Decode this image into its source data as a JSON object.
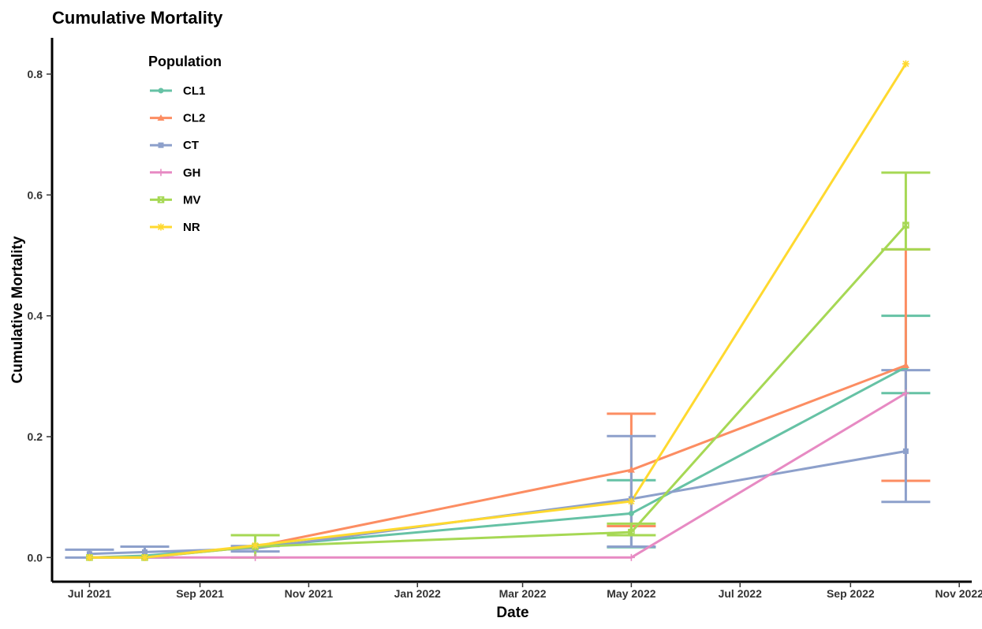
{
  "chart_data": {
    "type": "line",
    "title": "Cumulative Mortality",
    "xlabel": "Date",
    "ylabel": "Cumulative Mortality",
    "xlim": [
      "2021-06-10",
      "2022-11-08"
    ],
    "ylim": [
      -0.04,
      0.86
    ],
    "x_ticks": [
      {
        "date": "2021-07-01",
        "label": "Jul 2021"
      },
      {
        "date": "2021-09-01",
        "label": "Sep 2021"
      },
      {
        "date": "2021-11-01",
        "label": "Nov 2021"
      },
      {
        "date": "2022-01-01",
        "label": "Jan 2022"
      },
      {
        "date": "2022-03-01",
        "label": "Mar 2022"
      },
      {
        "date": "2022-05-01",
        "label": "May 2022"
      },
      {
        "date": "2022-07-01",
        "label": "Jul 2022"
      },
      {
        "date": "2022-09-01",
        "label": "Sep 2022"
      },
      {
        "date": "2022-11-01",
        "label": "Nov 2022"
      }
    ],
    "y_ticks": [
      0.0,
      0.2,
      0.4,
      0.6,
      0.8
    ],
    "y_tick_labels": [
      "0.0",
      "0.2",
      "0.4",
      "0.6",
      "0.8"
    ],
    "grid": false,
    "legend": {
      "title": "Population",
      "position": "top-left"
    },
    "series": [
      {
        "name": "CL1",
        "color": "#66c2a5",
        "marker": "circle",
        "points": [
          {
            "x": "2021-07-01",
            "y": 0.0
          },
          {
            "x": "2021-08-01",
            "y": 0.003
          },
          {
            "x": "2021-10-02",
            "y": 0.018
          },
          {
            "x": "2022-05-01",
            "y": 0.073,
            "lo": 0.017,
            "hi": 0.128
          },
          {
            "x": "2022-10-02",
            "y": 0.315,
            "lo": 0.272,
            "hi": 0.4
          }
        ]
      },
      {
        "name": "CL2",
        "color": "#fc8d62",
        "marker": "triangle",
        "points": [
          {
            "x": "2021-07-01",
            "y": 0.0
          },
          {
            "x": "2021-08-01",
            "y": 0.0
          },
          {
            "x": "2021-10-02",
            "y": 0.018
          },
          {
            "x": "2022-05-01",
            "y": 0.145,
            "lo": 0.052,
            "hi": 0.238
          },
          {
            "x": "2022-10-02",
            "y": 0.318,
            "lo": 0.127,
            "hi": 0.51
          }
        ]
      },
      {
        "name": "CT",
        "color": "#8da0cb",
        "marker": "square",
        "points": [
          {
            "x": "2021-07-01",
            "y": 0.006,
            "lo": 0.0,
            "hi": 0.013
          },
          {
            "x": "2021-08-01",
            "y": 0.009,
            "lo": 0.0,
            "hi": 0.018
          },
          {
            "x": "2021-10-02",
            "y": 0.015,
            "lo": 0.01,
            "hi": 0.019
          },
          {
            "x": "2022-05-01",
            "y": 0.097,
            "lo": 0.018,
            "hi": 0.201
          },
          {
            "x": "2022-10-02",
            "y": 0.176,
            "lo": 0.092,
            "hi": 0.31
          }
        ]
      },
      {
        "name": "GH",
        "color": "#e78ac3",
        "marker": "plus",
        "points": [
          {
            "x": "2021-07-01",
            "y": 0.0
          },
          {
            "x": "2021-08-01",
            "y": 0.0
          },
          {
            "x": "2021-10-02",
            "y": 0.0
          },
          {
            "x": "2022-05-01",
            "y": 0.0
          },
          {
            "x": "2022-10-02",
            "y": 0.272
          }
        ]
      },
      {
        "name": "MV",
        "color": "#a6d854",
        "marker": "boxed-x",
        "points": [
          {
            "x": "2021-07-01",
            "y": 0.0
          },
          {
            "x": "2021-08-01",
            "y": 0.0
          },
          {
            "x": "2021-10-02",
            "y": 0.018,
            "lo": 0.0,
            "hi": 0.037
          },
          {
            "x": "2022-05-01",
            "y": 0.042,
            "lo": 0.037,
            "hi": 0.056
          },
          {
            "x": "2022-10-02",
            "y": 0.55,
            "lo": 0.51,
            "hi": 0.637
          }
        ]
      },
      {
        "name": "NR",
        "color": "#ffd92f",
        "marker": "asterisk",
        "points": [
          {
            "x": "2021-07-01",
            "y": 0.0
          },
          {
            "x": "2021-08-01",
            "y": 0.0
          },
          {
            "x": "2021-10-02",
            "y": 0.02
          },
          {
            "x": "2022-05-01",
            "y": 0.093
          },
          {
            "x": "2022-10-02",
            "y": 0.817
          }
        ]
      }
    ]
  }
}
